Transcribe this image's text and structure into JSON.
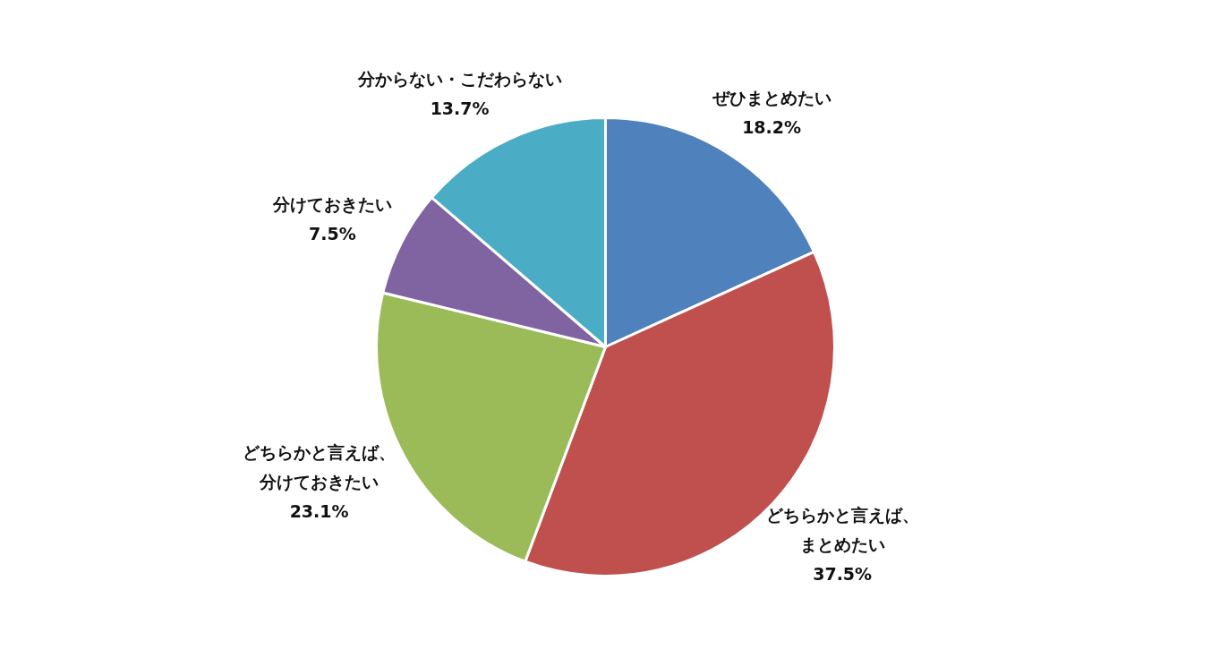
{
  "chart_data": {
    "type": "pie",
    "categories": [
      "ぜひまとめたい",
      "どちらかと言えば、まとめたい",
      "どちらかと言えば、分けておきたい",
      "分けておきたい",
      "分からない・こだわらない"
    ],
    "values": [
      18.2,
      37.5,
      23.1,
      7.5,
      13.7
    ],
    "value_labels": [
      "18.2%",
      "37.5%",
      "23.1%",
      "7.5%",
      "13.7%"
    ],
    "colors": [
      "#4f81bd",
      "#c0504d",
      "#9bbb59",
      "#8064a2",
      "#4bacc6"
    ],
    "legend": false
  }
}
